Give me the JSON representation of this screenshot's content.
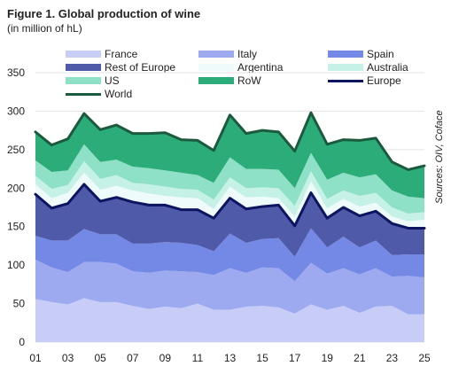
{
  "title": "Figure 1. Global production of wine",
  "subtitle": "(in million of hL)",
  "source": "Sources: OIV, Coface",
  "chart_data": {
    "type": "area",
    "stacked": true,
    "x": [
      1,
      2,
      3,
      4,
      5,
      6,
      7,
      8,
      9,
      10,
      11,
      12,
      13,
      14,
      15,
      16,
      17,
      18,
      19,
      20,
      21,
      22,
      23,
      24,
      25
    ],
    "x_tick_labels": [
      "01",
      "03",
      "05",
      "07",
      "09",
      "11",
      "13",
      "15",
      "17",
      "19",
      "21",
      "23",
      "25"
    ],
    "x_tick_values": [
      1,
      3,
      5,
      7,
      9,
      11,
      13,
      15,
      17,
      19,
      21,
      23,
      25
    ],
    "xlim": [
      1,
      25
    ],
    "ylim": [
      0,
      350
    ],
    "y_ticks": [
      0,
      50,
      100,
      150,
      200,
      250,
      300,
      350
    ],
    "grid": true,
    "legend_position": "top",
    "series": [
      {
        "name": "France",
        "color": "#c8cdf7",
        "values": [
          56,
          52,
          49,
          57,
          52,
          52,
          47,
          43,
          46,
          44,
          50,
          42,
          42,
          46,
          47,
          45,
          37,
          49,
          42,
          47,
          38,
          46,
          47,
          36,
          36
        ]
      },
      {
        "name": "Italy",
        "color": "#9eaaf0",
        "values": [
          51,
          45,
          42,
          47,
          52,
          50,
          45,
          47,
          47,
          48,
          41,
          45,
          54,
          44,
          50,
          51,
          42,
          54,
          47,
          49,
          50,
          50,
          38,
          50,
          48
        ]
      },
      {
        "name": "Spain",
        "color": "#7488e6",
        "values": [
          31,
          35,
          41,
          43,
          36,
          38,
          36,
          38,
          37,
          37,
          35,
          31,
          45,
          39,
          37,
          39,
          32,
          45,
          34,
          41,
          35,
          36,
          28,
          28,
          30
        ]
      },
      {
        "name": "Rest of Europe",
        "color": "#4f5aa8",
        "values": [
          54,
          42,
          48,
          58,
          43,
          48,
          54,
          50,
          48,
          43,
          46,
          43,
          46,
          44,
          42,
          43,
          40,
          46,
          38,
          38,
          41,
          38,
          41,
          34,
          34
        ]
      },
      {
        "name": "Argentina",
        "color": "#eefbfa",
        "values": [
          13,
          13,
          14,
          15,
          15,
          15,
          15,
          15,
          12,
          16,
          15,
          12,
          15,
          15,
          13,
          9,
          12,
          15,
          13,
          11,
          12,
          11,
          9,
          9,
          11
        ]
      },
      {
        "name": "Australia",
        "color": "#c6f1e6",
        "values": [
          11,
          12,
          10,
          15,
          14,
          14,
          10,
          12,
          12,
          11,
          11,
          12,
          12,
          12,
          12,
          13,
          14,
          13,
          12,
          11,
          14,
          13,
          12,
          10,
          10
        ]
      },
      {
        "name": "US",
        "color": "#8ee0c6",
        "values": [
          20,
          22,
          19,
          22,
          22,
          20,
          21,
          21,
          21,
          21,
          19,
          22,
          26,
          25,
          24,
          24,
          23,
          24,
          25,
          23,
          24,
          24,
          22,
          22,
          18
        ]
      },
      {
        "name": "RoW",
        "color": "#2cac78",
        "values": [
          37,
          35,
          41,
          40,
          42,
          45,
          43,
          45,
          49,
          43,
          45,
          42,
          55,
          46,
          50,
          49,
          48,
          52,
          46,
          43,
          48,
          47,
          37,
          35,
          42
        ]
      }
    ],
    "lines": [
      {
        "name": "World",
        "color": "#1c5a3e",
        "values": [
          273,
          256,
          264,
          297,
          276,
          282,
          271,
          271,
          272,
          263,
          262,
          249,
          295,
          271,
          275,
          273,
          248,
          298,
          257,
          263,
          262,
          265,
          234,
          224,
          229
        ]
      },
      {
        "name": "Europe",
        "color": "#0d1560",
        "values": [
          192,
          174,
          180,
          205,
          183,
          188,
          182,
          178,
          178,
          172,
          172,
          161,
          187,
          173,
          176,
          178,
          151,
          194,
          161,
          175,
          164,
          170,
          154,
          148,
          148
        ]
      }
    ],
    "legend": [
      {
        "name": "France",
        "kind": "area",
        "color": "#c8cdf7"
      },
      {
        "name": "Italy",
        "kind": "area",
        "color": "#9eaaf0"
      },
      {
        "name": "Spain",
        "kind": "area",
        "color": "#7488e6"
      },
      {
        "name": "Rest of Europe",
        "kind": "area",
        "color": "#4f5aa8"
      },
      {
        "name": "Argentina",
        "kind": "area",
        "color": "#eefbfa"
      },
      {
        "name": "Australia",
        "kind": "area",
        "color": "#c6f1e6"
      },
      {
        "name": "US",
        "kind": "area",
        "color": "#8ee0c6"
      },
      {
        "name": "RoW",
        "kind": "area",
        "color": "#2cac78"
      },
      {
        "name": "Europe",
        "kind": "line",
        "color": "#0d1560"
      },
      {
        "name": "World",
        "kind": "line",
        "color": "#1c5a3e"
      }
    ]
  }
}
